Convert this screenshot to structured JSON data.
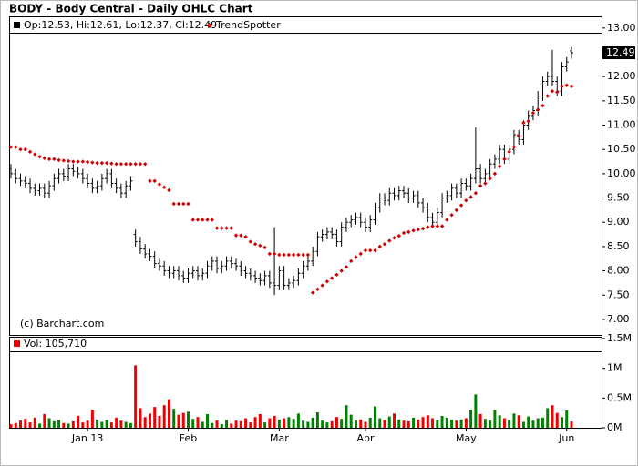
{
  "chart_data": {
    "type": "ohlc",
    "title": "BODY - Body Central - Daily OHLC Chart",
    "legend_text": "Op:12.53, Hi:12.61, Lo:12.37, Cl:12.49",
    "last_label": "12.49",
    "credit": "(c) Barchart.com",
    "categories": [
      null,
      null,
      null,
      null,
      null,
      null,
      null,
      null,
      null,
      null,
      null,
      null,
      null,
      null,
      null,
      null,
      "Jan 13",
      null,
      null,
      null,
      null,
      null,
      null,
      null,
      null,
      null,
      null,
      null,
      null,
      null,
      null,
      null,
      null,
      null,
      null,
      null,
      null,
      "Feb",
      null,
      null,
      null,
      null,
      null,
      null,
      null,
      null,
      null,
      null,
      null,
      null,
      null,
      null,
      null,
      null,
      null,
      null,
      "Mar",
      null,
      null,
      null,
      null,
      null,
      null,
      null,
      null,
      null,
      null,
      null,
      null,
      null,
      null,
      null,
      null,
      null,
      "Apr",
      null,
      null,
      null,
      null,
      null,
      null,
      null,
      null,
      null,
      null,
      null,
      null,
      null,
      null,
      null,
      null,
      null,
      null,
      null,
      null,
      "May",
      null,
      null,
      null,
      null,
      null,
      null,
      null,
      null,
      null,
      null,
      null,
      null,
      null,
      null,
      null,
      null,
      null,
      null,
      null,
      null,
      "Jun",
      null
    ],
    "ohlc": {
      "color": "#000000",
      "open": [
        10.1,
        10.0,
        9.9,
        9.85,
        9.8,
        9.7,
        9.65,
        9.7,
        9.6,
        9.75,
        9.9,
        10.0,
        9.95,
        10.1,
        10.05,
        10.0,
        9.9,
        9.8,
        9.7,
        9.75,
        9.9,
        10.0,
        9.8,
        9.7,
        9.6,
        9.75,
        8.75,
        8.6,
        8.45,
        8.35,
        8.3,
        8.15,
        8.1,
        8.0,
        7.95,
        8.0,
        7.9,
        7.85,
        7.95,
        8.0,
        7.9,
        7.95,
        8.1,
        8.2,
        8.05,
        8.1,
        8.2,
        8.15,
        8.1,
        8.0,
        7.95,
        7.9,
        7.85,
        7.8,
        7.9,
        7.75,
        7.7,
        8.0,
        7.7,
        7.75,
        7.8,
        7.95,
        8.1,
        8.2,
        8.4,
        8.7,
        8.75,
        8.8,
        8.75,
        8.6,
        8.9,
        9.0,
        9.05,
        9.1,
        9.0,
        8.9,
        9.05,
        9.3,
        9.5,
        9.45,
        9.6,
        9.55,
        9.65,
        9.6,
        9.5,
        9.55,
        9.4,
        9.3,
        9.1,
        9.0,
        9.2,
        9.5,
        9.55,
        9.7,
        9.6,
        9.8,
        9.75,
        9.9,
        10.1,
        9.9,
        10.0,
        10.2,
        10.3,
        10.5,
        10.3,
        10.5,
        10.8,
        10.7,
        11.0,
        11.2,
        11.3,
        11.6,
        11.9,
        12.0,
        11.9,
        11.7,
        12.2,
        12.53
      ],
      "high": [
        10.2,
        10.1,
        10.0,
        9.95,
        9.9,
        9.8,
        9.8,
        9.8,
        9.85,
        10.0,
        10.1,
        10.1,
        10.2,
        10.2,
        10.15,
        10.1,
        10.0,
        9.9,
        9.85,
        10.0,
        10.1,
        10.1,
        9.9,
        9.8,
        9.85,
        9.95,
        8.85,
        8.7,
        8.55,
        8.45,
        8.4,
        8.25,
        8.2,
        8.1,
        8.1,
        8.1,
        8.0,
        8.05,
        8.1,
        8.1,
        8.05,
        8.2,
        8.3,
        8.3,
        8.2,
        8.3,
        8.3,
        8.25,
        8.2,
        8.1,
        8.05,
        8.0,
        7.95,
        8.0,
        8.0,
        8.9,
        8.1,
        8.1,
        7.85,
        7.9,
        8.05,
        8.2,
        8.3,
        8.5,
        8.8,
        8.85,
        8.9,
        8.9,
        8.85,
        9.0,
        9.1,
        9.15,
        9.2,
        9.2,
        9.1,
        9.15,
        9.4,
        9.6,
        9.6,
        9.7,
        9.7,
        9.75,
        9.75,
        9.7,
        9.65,
        9.65,
        9.5,
        9.4,
        9.2,
        9.3,
        9.6,
        9.65,
        9.8,
        9.8,
        9.9,
        9.9,
        10.0,
        10.95,
        10.2,
        10.1,
        10.3,
        10.4,
        10.6,
        10.6,
        10.6,
        10.9,
        10.9,
        11.1,
        11.3,
        11.4,
        11.7,
        12.0,
        12.1,
        12.55,
        12.0,
        12.3,
        12.4,
        12.61
      ],
      "low": [
        9.9,
        9.8,
        9.75,
        9.7,
        9.6,
        9.55,
        9.55,
        9.5,
        9.5,
        9.65,
        9.8,
        9.85,
        9.85,
        9.95,
        9.9,
        9.8,
        9.7,
        9.6,
        9.6,
        9.65,
        9.8,
        9.7,
        9.6,
        9.5,
        9.5,
        9.65,
        8.5,
        8.35,
        8.25,
        8.2,
        8.05,
        8.0,
        7.9,
        7.85,
        7.85,
        7.8,
        7.75,
        7.75,
        7.85,
        7.8,
        7.8,
        7.85,
        8.0,
        7.95,
        7.95,
        8.0,
        8.05,
        8.0,
        7.9,
        7.85,
        7.8,
        7.75,
        7.7,
        7.7,
        7.65,
        7.5,
        7.6,
        7.6,
        7.6,
        7.65,
        7.7,
        7.85,
        8.0,
        8.1,
        8.3,
        8.6,
        8.65,
        8.65,
        8.5,
        8.5,
        8.8,
        8.9,
        8.95,
        8.9,
        8.8,
        8.8,
        8.95,
        9.2,
        9.35,
        9.35,
        9.45,
        9.45,
        9.5,
        9.4,
        9.4,
        9.3,
        9.2,
        9.0,
        8.9,
        8.9,
        9.1,
        9.4,
        9.45,
        9.5,
        9.5,
        9.65,
        9.65,
        9.8,
        9.8,
        9.8,
        9.9,
        10.1,
        10.2,
        10.2,
        10.2,
        10.4,
        10.6,
        10.6,
        10.9,
        11.1,
        11.2,
        11.5,
        11.8,
        11.8,
        11.6,
        11.6,
        12.1,
        12.37
      ],
      "close": [
        10.0,
        9.9,
        9.85,
        9.8,
        9.7,
        9.65,
        9.7,
        9.6,
        9.75,
        9.9,
        10.0,
        9.95,
        10.1,
        10.05,
        10.0,
        9.9,
        9.8,
        9.7,
        9.75,
        9.9,
        10.0,
        9.8,
        9.7,
        9.6,
        9.75,
        9.85,
        8.6,
        8.45,
        8.35,
        8.3,
        8.15,
        8.1,
        8.0,
        7.95,
        8.0,
        7.9,
        7.85,
        7.95,
        8.0,
        7.9,
        7.95,
        8.1,
        8.2,
        8.05,
        8.1,
        8.2,
        8.15,
        8.1,
        8.0,
        7.95,
        7.9,
        7.85,
        7.8,
        7.9,
        7.75,
        7.7,
        8.0,
        7.7,
        7.75,
        7.8,
        7.95,
        8.1,
        8.2,
        8.4,
        8.7,
        8.75,
        8.8,
        8.75,
        8.6,
        8.9,
        9.0,
        9.05,
        9.1,
        9.0,
        8.9,
        9.05,
        9.3,
        9.5,
        9.45,
        9.6,
        9.55,
        9.65,
        9.6,
        9.5,
        9.55,
        9.4,
        9.3,
        9.1,
        9.0,
        9.2,
        9.5,
        9.55,
        9.7,
        9.6,
        9.8,
        9.75,
        9.9,
        10.1,
        9.9,
        10.0,
        10.2,
        10.3,
        10.5,
        10.3,
        10.5,
        10.8,
        10.7,
        11.0,
        11.2,
        11.3,
        11.6,
        11.9,
        12.0,
        11.9,
        11.7,
        12.2,
        12.3,
        12.49
      ]
    },
    "series": [
      {
        "name": "TrendSpotter",
        "color": "#cc0000",
        "values": [
          10.55,
          10.55,
          10.5,
          10.5,
          10.45,
          10.4,
          10.35,
          10.32,
          10.3,
          10.3,
          10.28,
          10.27,
          10.26,
          10.25,
          10.25,
          10.25,
          10.24,
          10.23,
          10.22,
          10.22,
          10.22,
          10.21,
          10.2,
          10.2,
          10.2,
          10.2,
          10.2,
          10.2,
          10.2,
          9.85,
          9.85,
          9.78,
          9.72,
          9.66,
          9.38,
          9.38,
          9.38,
          9.38,
          9.05,
          9.05,
          9.05,
          9.05,
          9.05,
          8.88,
          8.88,
          8.88,
          8.88,
          8.73,
          8.73,
          8.7,
          8.6,
          8.55,
          8.52,
          8.48,
          8.35,
          8.35,
          8.33,
          8.33,
          8.33,
          8.33,
          8.33,
          8.33,
          8.33,
          7.55,
          7.62,
          7.7,
          7.78,
          7.85,
          7.92,
          8.0,
          8.08,
          8.2,
          8.28,
          8.35,
          8.42,
          8.42,
          8.42,
          8.5,
          8.55,
          8.62,
          8.68,
          8.72,
          8.78,
          8.8,
          8.83,
          8.85,
          8.87,
          8.9,
          8.92,
          8.92,
          8.92,
          9.05,
          9.15,
          9.25,
          9.35,
          9.45,
          9.52,
          9.6,
          9.75,
          9.8,
          9.9,
          10.0,
          10.15,
          10.3,
          10.45,
          10.55,
          10.78,
          11.05,
          11.08,
          11.25,
          11.32,
          11.4,
          11.6,
          11.7,
          11.68,
          11.8,
          11.82,
          11.8
        ]
      }
    ],
    "ylim": [
      6.68,
      13.24
    ],
    "yticks": [
      {
        "value": 7,
        "label": "7.00"
      },
      {
        "value": 7.5,
        "label": "7.50"
      },
      {
        "value": 8,
        "label": "8.00"
      },
      {
        "value": 8.5,
        "label": "8.50"
      },
      {
        "value": 9,
        "label": "9.00"
      },
      {
        "value": 9.5,
        "label": "9.50"
      },
      {
        "value": 10,
        "label": "10.00"
      },
      {
        "value": 10.5,
        "label": "10.50"
      },
      {
        "value": 11,
        "label": "11.00"
      },
      {
        "value": 11.5,
        "label": "11.50"
      },
      {
        "value": 12,
        "label": "12.00"
      },
      {
        "value": 12.5,
        "label": "12.50"
      },
      {
        "value": 13,
        "label": "13.00"
      }
    ],
    "volume": {
      "label": "Vol: 105,710",
      "up_color": "#008000",
      "down_color": "#ee0000",
      "ylim": [
        0,
        1530000
      ],
      "yticks": [
        {
          "value": 0,
          "label": "0M"
        },
        {
          "value": 500000,
          "label": "0.5M"
        },
        {
          "value": 1000000,
          "label": "1M"
        },
        {
          "value": 1500000,
          "label": "1.5M"
        }
      ],
      "values": [
        60000,
        80000,
        120000,
        150000,
        90000,
        170000,
        70000,
        230000,
        160000,
        110000,
        130000,
        80000,
        70000,
        110000,
        200000,
        90000,
        120000,
        300000,
        140000,
        100000,
        130000,
        90000,
        170000,
        120000,
        100000,
        80000,
        1050000,
        330000,
        180000,
        240000,
        350000,
        200000,
        380000,
        480000,
        320000,
        220000,
        250000,
        270000,
        150000,
        180000,
        100000,
        230000,
        80000,
        120000,
        60000,
        130000,
        70000,
        120000,
        110000,
        160000,
        90000,
        180000,
        230000,
        90000,
        160000,
        200000,
        140000,
        160000,
        180000,
        150000,
        240000,
        120000,
        100000,
        170000,
        260000,
        120000,
        90000,
        110000,
        180000,
        150000,
        380000,
        220000,
        120000,
        140000,
        100000,
        170000,
        360000,
        160000,
        130000,
        190000,
        240000,
        140000,
        120000,
        110000,
        170000,
        140000,
        180000,
        210000,
        160000,
        130000,
        200000,
        170000,
        140000,
        120000,
        140000,
        160000,
        300000,
        560000,
        230000,
        150000,
        120000,
        300000,
        210000,
        160000,
        130000,
        240000,
        210000,
        100000,
        190000,
        120000,
        160000,
        170000,
        330000,
        380000,
        250000,
        180000,
        290000,
        105710
      ]
    }
  }
}
